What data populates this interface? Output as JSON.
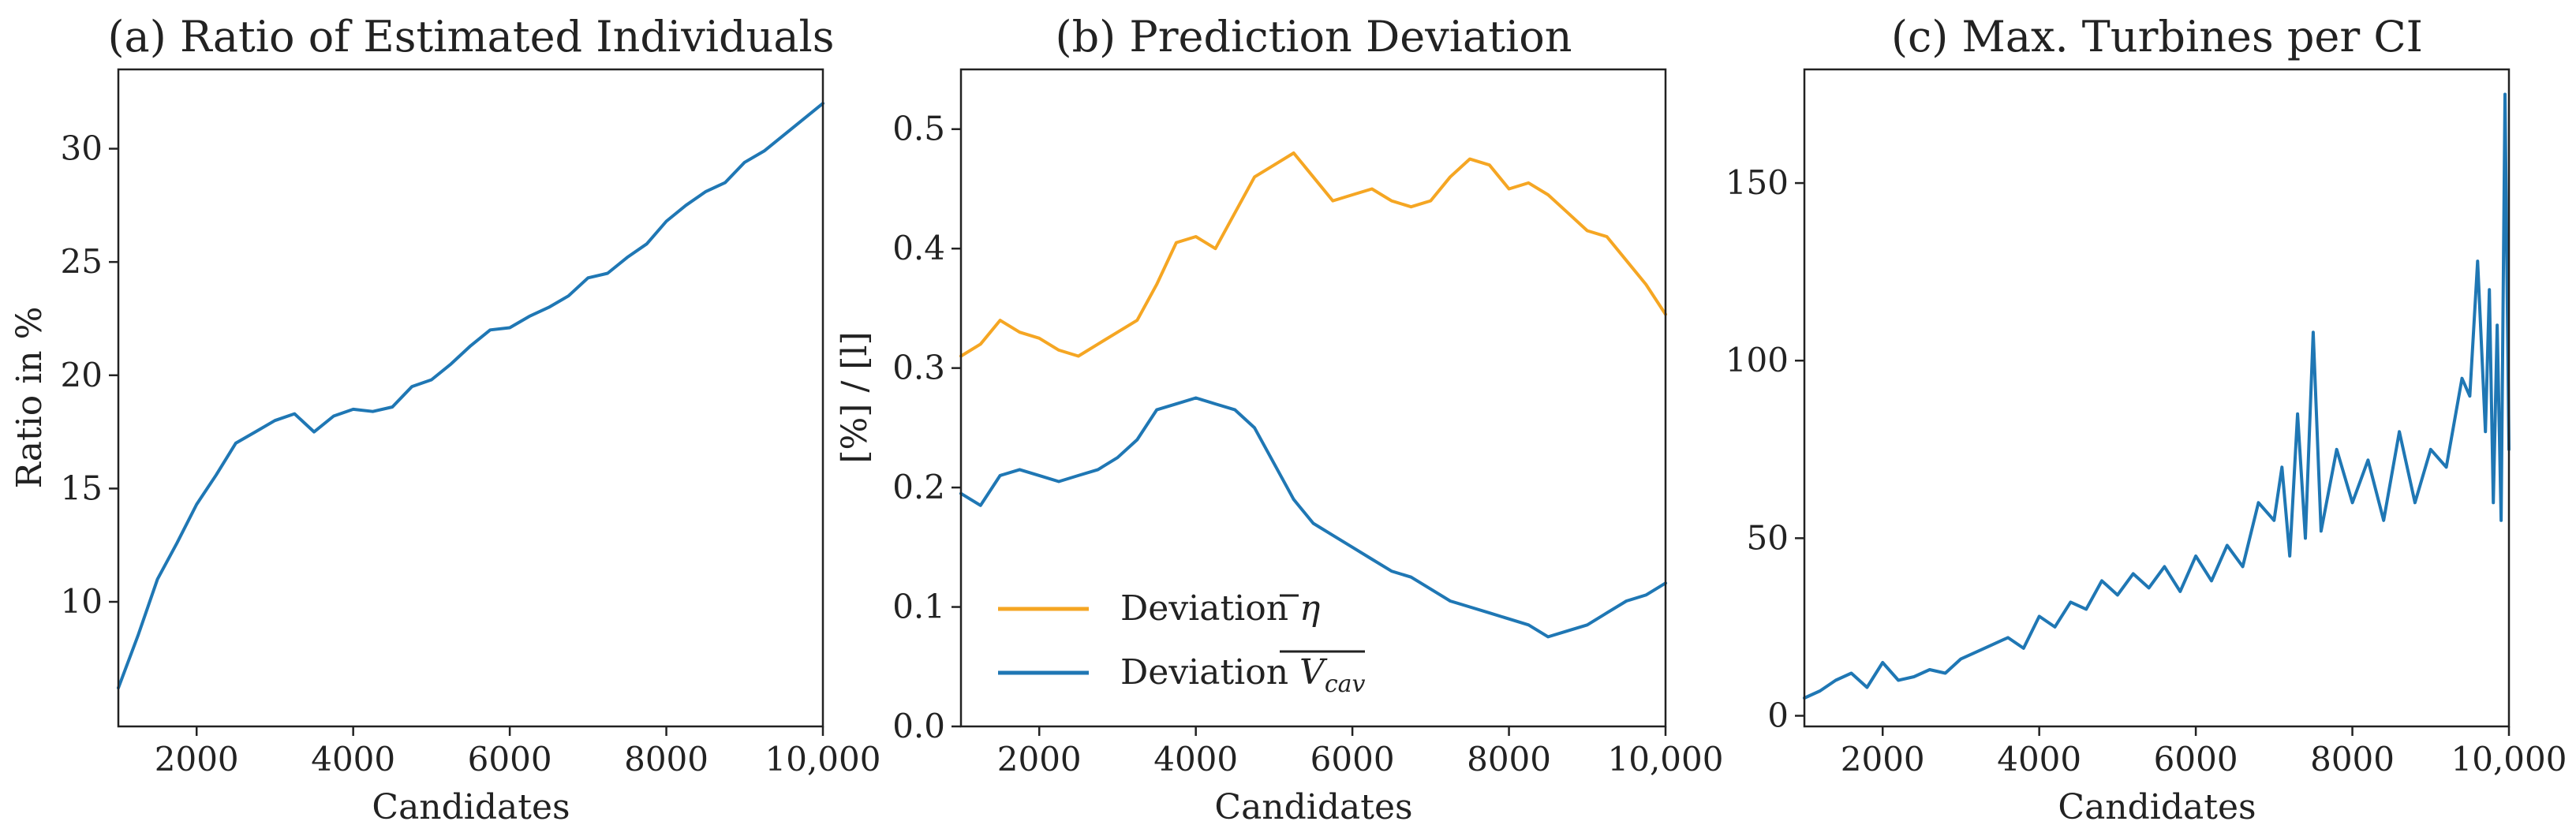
{
  "figure": {
    "panel_count": 3
  },
  "chart_data": [
    {
      "type": "line",
      "title": "(a) Ratio of Estimated Individuals",
      "xlabel": "Candidates",
      "ylabel": "Ratio in %",
      "xlim": [
        1000,
        10000
      ],
      "ylim": [
        4.5,
        33.5
      ],
      "xticks": [
        2000,
        4000,
        6000,
        8000,
        10000
      ],
      "xtick_labels": [
        "2000",
        "4000",
        "6000",
        "8000",
        "10,000"
      ],
      "yticks": [
        10,
        15,
        20,
        25,
        30
      ],
      "ytick_labels": [
        "10",
        "15",
        "20",
        "25",
        "30"
      ],
      "series": [
        {
          "name": "Ratio",
          "color": "#1f77b4",
          "x": [
            1000,
            1250,
            1500,
            1750,
            2000,
            2250,
            2500,
            2750,
            3000,
            3250,
            3500,
            3750,
            4000,
            4250,
            4500,
            4750,
            5000,
            5250,
            5500,
            5750,
            6000,
            6250,
            6500,
            6750,
            7000,
            7250,
            7500,
            7750,
            8000,
            8250,
            8500,
            8750,
            9000,
            9250,
            9500,
            9750,
            10000
          ],
          "y": [
            6.2,
            8.5,
            11.0,
            12.6,
            14.3,
            15.6,
            17.0,
            17.5,
            18.0,
            18.3,
            17.5,
            18.2,
            18.5,
            18.4,
            18.6,
            19.5,
            19.8,
            20.5,
            21.3,
            22.0,
            22.1,
            22.6,
            23.0,
            23.5,
            24.3,
            24.5,
            25.2,
            25.8,
            26.8,
            27.5,
            28.1,
            28.5,
            29.4,
            29.9,
            30.6,
            31.3,
            32.0
          ]
        }
      ]
    },
    {
      "type": "line",
      "title": "(b) Prediction Deviation",
      "xlabel": "Candidates",
      "ylabel": "[%] / [l]",
      "xlim": [
        1000,
        10000
      ],
      "ylim": [
        0.0,
        0.55
      ],
      "xticks": [
        2000,
        4000,
        6000,
        8000,
        10000
      ],
      "xtick_labels": [
        "2000",
        "4000",
        "6000",
        "8000",
        "10,000"
      ],
      "yticks": [
        0.0,
        0.1,
        0.2,
        0.3,
        0.4,
        0.5
      ],
      "ytick_labels": [
        "0.0",
        "0.1",
        "0.2",
        "0.3",
        "0.4",
        "0.5"
      ],
      "legend": {
        "location": "lower-left"
      },
      "series": [
        {
          "name": "Deviation η̄",
          "legend_main": "Deviation ",
          "legend_symbol": "η",
          "color": "#f5a623",
          "x": [
            1000,
            1250,
            1500,
            1750,
            2000,
            2250,
            2500,
            2750,
            3000,
            3250,
            3500,
            3750,
            4000,
            4250,
            4500,
            4750,
            5000,
            5250,
            5500,
            5750,
            6000,
            6250,
            6500,
            6750,
            7000,
            7250,
            7500,
            7750,
            8000,
            8250,
            8500,
            8750,
            9000,
            9250,
            9500,
            9750,
            10000
          ],
          "y": [
            0.31,
            0.32,
            0.34,
            0.33,
            0.325,
            0.315,
            0.31,
            0.32,
            0.33,
            0.34,
            0.37,
            0.405,
            0.41,
            0.4,
            0.43,
            0.46,
            0.47,
            0.48,
            0.46,
            0.44,
            0.445,
            0.45,
            0.44,
            0.435,
            0.44,
            0.46,
            0.475,
            0.47,
            0.45,
            0.455,
            0.445,
            0.43,
            0.415,
            0.41,
            0.39,
            0.37,
            0.345
          ]
        },
        {
          "name": "Deviation V̄cav",
          "legend_main": "Deviation ",
          "legend_symbol": "V",
          "legend_sub": "cav",
          "color": "#1f77b4",
          "x": [
            1000,
            1250,
            1500,
            1750,
            2000,
            2250,
            2500,
            2750,
            3000,
            3250,
            3500,
            3750,
            4000,
            4250,
            4500,
            4750,
            5000,
            5250,
            5500,
            5750,
            6000,
            6250,
            6500,
            6750,
            7000,
            7250,
            7500,
            7750,
            8000,
            8250,
            8500,
            8750,
            9000,
            9250,
            9500,
            9750,
            10000
          ],
          "y": [
            0.195,
            0.185,
            0.21,
            0.215,
            0.21,
            0.205,
            0.21,
            0.215,
            0.225,
            0.24,
            0.265,
            0.27,
            0.275,
            0.27,
            0.265,
            0.25,
            0.22,
            0.19,
            0.17,
            0.16,
            0.15,
            0.14,
            0.13,
            0.125,
            0.115,
            0.105,
            0.1,
            0.095,
            0.09,
            0.085,
            0.075,
            0.08,
            0.085,
            0.095,
            0.105,
            0.11,
            0.12
          ]
        }
      ]
    },
    {
      "type": "line",
      "title": "(c) Max. Turbines per CI",
      "xlabel": "Candidates",
      "ylabel": "",
      "xlim": [
        1000,
        10000
      ],
      "ylim": [
        -3,
        182
      ],
      "xticks": [
        2000,
        4000,
        6000,
        8000,
        10000
      ],
      "xtick_labels": [
        "2000",
        "4000",
        "6000",
        "8000",
        "10,000"
      ],
      "yticks": [
        0,
        50,
        100,
        150
      ],
      "ytick_labels": [
        "0",
        "50",
        "100",
        "150"
      ],
      "series": [
        {
          "name": "Max turbines",
          "color": "#1f77b4",
          "x": [
            1000,
            1200,
            1400,
            1600,
            1800,
            2000,
            2200,
            2400,
            2600,
            2800,
            3000,
            3200,
            3400,
            3600,
            3800,
            4000,
            4200,
            4400,
            4600,
            4800,
            5000,
            5200,
            5400,
            5600,
            5800,
            6000,
            6200,
            6400,
            6600,
            6800,
            7000,
            7100,
            7200,
            7300,
            7400,
            7500,
            7600,
            7800,
            8000,
            8200,
            8400,
            8600,
            8800,
            9000,
            9200,
            9400,
            9500,
            9600,
            9700,
            9750,
            9800,
            9850,
            9900,
            9950,
            10000
          ],
          "y": [
            5,
            7,
            10,
            12,
            8,
            15,
            10,
            11,
            13,
            12,
            16,
            18,
            20,
            22,
            19,
            28,
            25,
            32,
            30,
            38,
            34,
            40,
            36,
            42,
            35,
            45,
            38,
            48,
            42,
            60,
            55,
            70,
            45,
            85,
            50,
            108,
            52,
            75,
            60,
            72,
            55,
            80,
            60,
            75,
            70,
            95,
            90,
            128,
            80,
            120,
            60,
            110,
            55,
            175,
            75
          ]
        }
      ]
    }
  ]
}
